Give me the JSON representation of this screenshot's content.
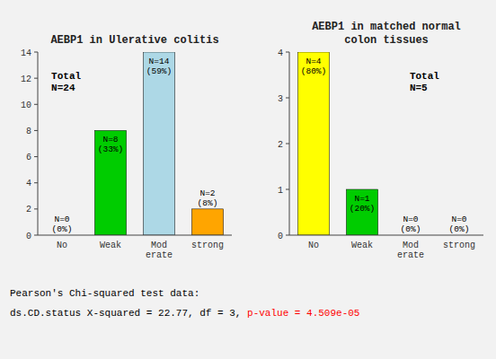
{
  "chart_data": [
    {
      "type": "bar",
      "title": "AEBP1 in Ulerative colitis",
      "categories": [
        "No",
        "Weak",
        "Mod\nerate",
        "strong"
      ],
      "values": [
        0,
        8,
        14,
        2
      ],
      "colors": [
        "#00CC00",
        "#00CC00",
        "#ADD8E6",
        "#FFA500"
      ],
      "ylim": [
        0,
        14
      ],
      "yticks": [
        0,
        2,
        4,
        6,
        8,
        10,
        12,
        14
      ],
      "grid": false,
      "data_labels": true,
      "value_labels": [
        "N=0\n(0%)",
        "N=8\n(33%)",
        "N=14\n(59%)",
        "N=2\n(8%)"
      ],
      "annotations": [
        "Total\nN=24"
      ]
    },
    {
      "type": "bar",
      "title": "AEBP1 in matched normal\ncolon tissues",
      "categories": [
        "No",
        "Weak",
        "Mod\nerate",
        "strong"
      ],
      "values": [
        4,
        1,
        0,
        0
      ],
      "colors": [
        "#FFFF00",
        "#00CC00",
        "#00CC00",
        "#00CC00"
      ],
      "ylim": [
        0,
        4
      ],
      "yticks": [
        0,
        1,
        2,
        3,
        4
      ],
      "grid": false,
      "data_labels": true,
      "value_labels": [
        "N=4\n(80%)",
        "N=1\n(20%)",
        "N=0\n(0%)",
        "N=0\n(0%)"
      ],
      "annotations": [
        "Total\nN=5"
      ]
    }
  ],
  "annotations": [
    {
      "text": "Pearson's Chi-squared test data:"
    },
    {
      "text": "ds.CD.status X-squared = 22.77, df = 3, "
    },
    {
      "text": "p-value = 4.509e-05",
      "color": "red"
    }
  ]
}
